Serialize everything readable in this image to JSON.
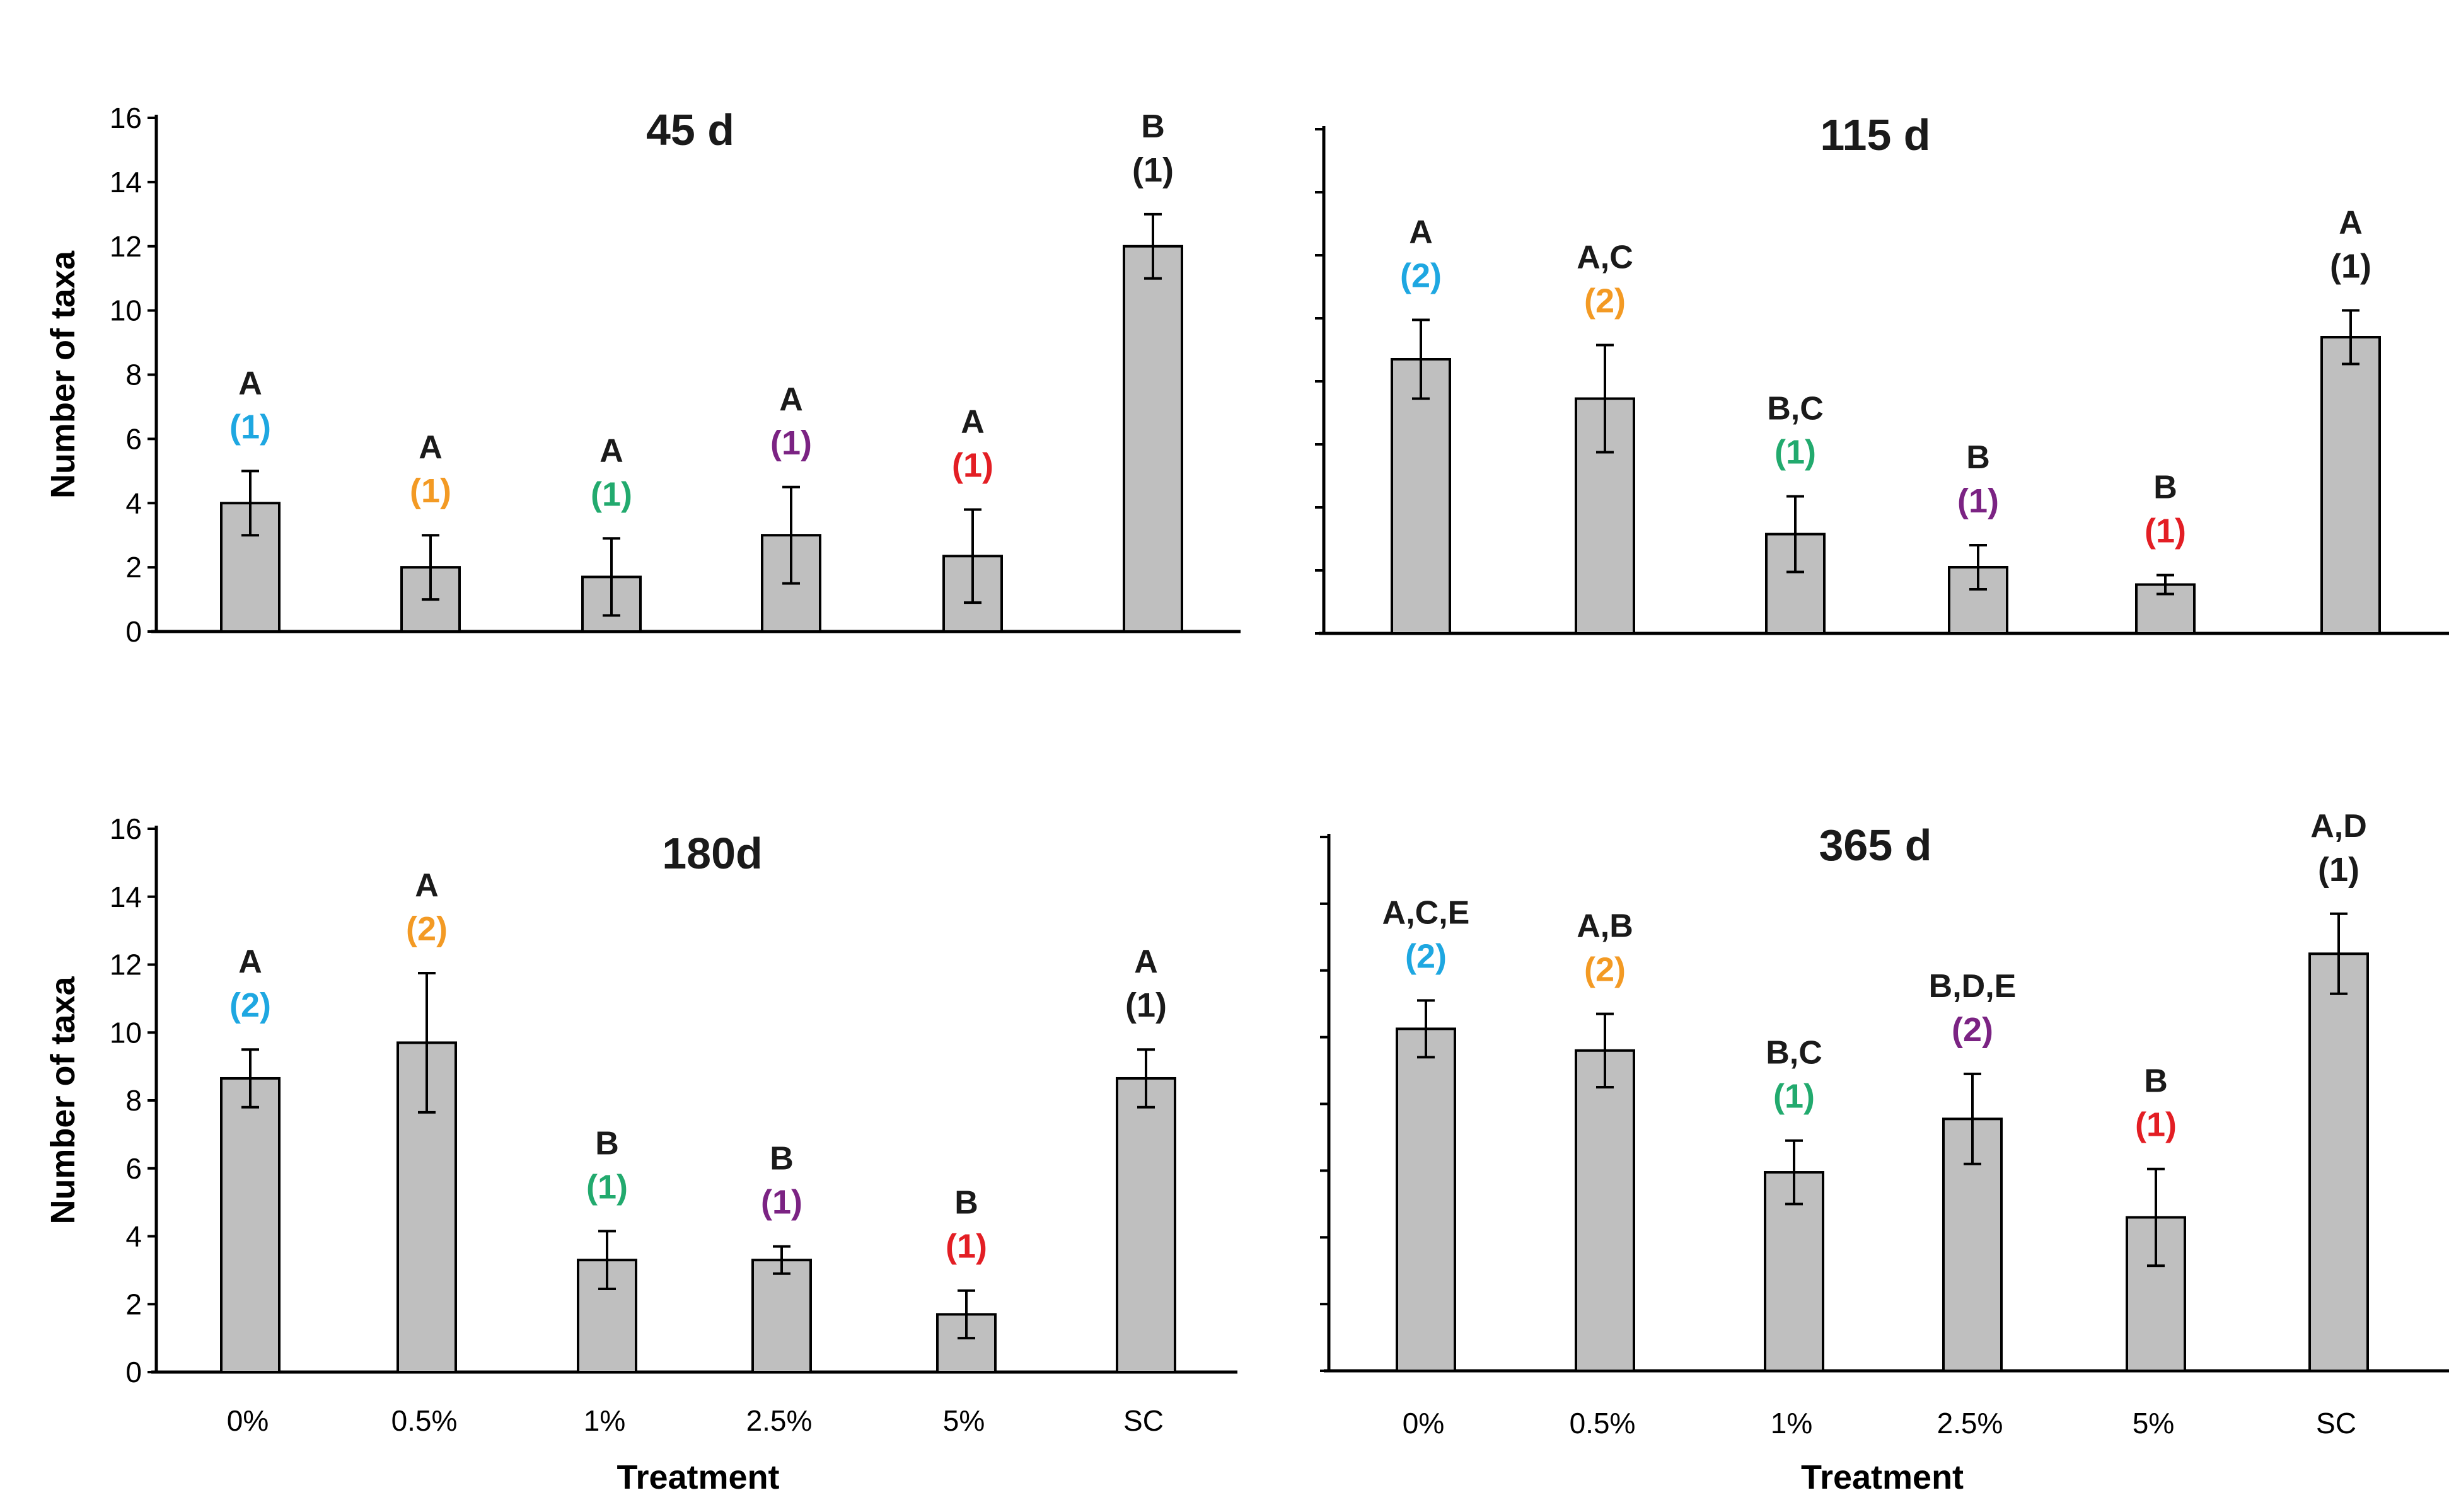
{
  "style": {
    "bar_fill": "#bfbfbf",
    "bar_stroke": "#000000",
    "axis_color": "#000000",
    "text_color": "#1a1a1a",
    "group_colors": {
      "(1)": "#1a1a1a",
      "(2)": "#1a1a1a"
    },
    "category_colors": [
      "#1ea7e1",
      "#f39a24",
      "#22aa6e",
      "#7b2383",
      "#e31e24",
      "#1a1a1a"
    ]
  },
  "chart_data": [
    {
      "type": "bar",
      "title": "45 d",
      "categories": [
        "0%",
        "0.5%",
        "1%",
        "2.5%",
        "5%",
        "SC"
      ],
      "values": [
        4,
        2,
        1.7,
        3,
        2.35,
        12
      ],
      "errors": [
        1,
        1,
        1.2,
        1.5,
        1.45,
        1
      ],
      "letters": [
        "A",
        "A",
        "A",
        "A",
        "A",
        "B"
      ],
      "groups": [
        "(1)",
        "(1)",
        "(1)",
        "(1)",
        "(1)",
        "(1)"
      ],
      "ylabel": "Number of taxa",
      "xlabel": "",
      "ylim": [
        0,
        16
      ],
      "yticks": [
        "0",
        "2",
        "4",
        "6",
        "8",
        "10",
        "12",
        "14",
        "16"
      ],
      "show_tick_labels": true,
      "show_category_labels": false
    },
    {
      "type": "bar",
      "title": "115 d",
      "categories": [
        "0%",
        "0.5%",
        "1%",
        "2.5%",
        "5%",
        "SC"
      ],
      "values": [
        8.7,
        7.45,
        3.15,
        2.1,
        1.55,
        9.4
      ],
      "errors": [
        1.25,
        1.7,
        1.2,
        0.7,
        0.3,
        0.85
      ],
      "letters": [
        "A",
        "A,C",
        "B,C",
        "B",
        "B",
        "A"
      ],
      "groups": [
        "(2)",
        "(2)",
        "(1)",
        "(1)",
        "(1)",
        "(1)"
      ],
      "ylabel": "",
      "xlabel": "",
      "ylim": [
        0,
        16
      ],
      "yticks": [],
      "show_tick_labels": false,
      "show_category_labels": false
    },
    {
      "type": "bar",
      "title": "180d",
      "categories": [
        "0%",
        "0.5%",
        "1%",
        "2.5%",
        "5%",
        "SC"
      ],
      "values": [
        8.65,
        9.7,
        3.3,
        3.3,
        1.7,
        8.65
      ],
      "errors": [
        0.85,
        2.05,
        0.85,
        0.4,
        0.7,
        0.85
      ],
      "letters": [
        "A",
        "A",
        "B",
        "B",
        "B",
        "A"
      ],
      "groups": [
        "(2)",
        "(2)",
        "(1)",
        "(1)",
        "(1)",
        "(1)"
      ],
      "ylabel": "Number of taxa",
      "xlabel": "Treatment",
      "ylim": [
        0,
        16
      ],
      "yticks": [
        "0",
        "2",
        "4",
        "6",
        "8",
        "10",
        "12",
        "14",
        "16"
      ],
      "show_tick_labels": true,
      "show_category_labels": true
    },
    {
      "type": "bar",
      "title": "365 d",
      "categories": [
        "0%",
        "0.5%",
        "1%",
        "2.5%",
        "5%",
        "SC"
      ],
      "values": [
        10.25,
        9.6,
        5.95,
        7.55,
        4.6,
        12.5
      ],
      "errors": [
        0.85,
        1.1,
        0.95,
        1.35,
        1.45,
        1.2
      ],
      "letters": [
        "A,C,E",
        "A,B",
        "B,C",
        "B,D,E",
        "B",
        "A,D"
      ],
      "groups": [
        "(2)",
        "(2)",
        "(1)",
        "(2)",
        "(1)",
        "(1)"
      ],
      "ylabel": "",
      "xlabel": "Treatment",
      "ylim": [
        0,
        16
      ],
      "yticks": [],
      "show_tick_labels": false,
      "show_category_labels": true
    }
  ]
}
